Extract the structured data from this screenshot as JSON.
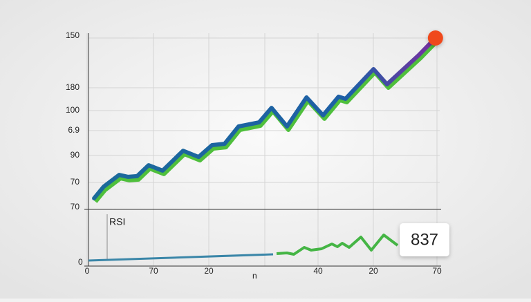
{
  "chart_data": {
    "type": "line",
    "series": [
      {
        "name": null,
        "color": "#1f5f9e",
        "x": [
          1.4,
          3.3,
          6.4,
          8.2,
          10.0,
          12.3,
          15.1,
          19.2,
          22.3,
          25.0,
          27.5,
          30.3,
          34.4,
          36.9,
          40.0,
          43.9,
          47.2,
          50.3,
          51.7,
          57.3,
          60.0,
          66.3,
          69.7
        ],
        "values": [
          75.2,
          80.6,
          86.1,
          85.2,
          85.5,
          90.6,
          88.1,
          97.4,
          94.5,
          100.0,
          100.6,
          108.7,
          110.6,
          117.4,
          108.7,
          122.3,
          113.9,
          122.6,
          121.6,
          135.5,
          128.4,
          141.9,
          150
        ]
      }
    ],
    "xlim": [
      0,
      70
    ],
    "xticks": [
      0,
      70
    ],
    "ylim": [
      70,
      150
    ],
    "yticks": [
      70,
      150
    ],
    "y_label_texts": [
      "180",
      "100",
      "6.9",
      "90",
      "70"
    ],
    "x_label_texts": [
      "70",
      "20",
      "40",
      "20"
    ],
    "x_axis_label": "n",
    "panel_label": "RSI",
    "panel_axis_label": "0",
    "badge": "837",
    "end_marker_color": "#f04a1e"
  }
}
